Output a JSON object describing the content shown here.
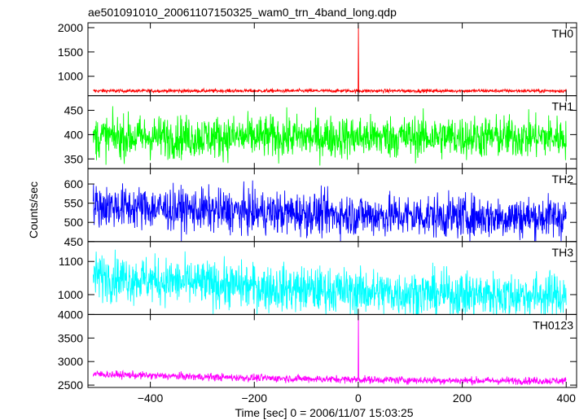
{
  "title": "ae501091010_20061107150325_wam0_trn_4band_long.qdp",
  "chart_data": {
    "type": "line",
    "title": "ae501091010_20061107150325_wam0_trn_4band_long.qdp",
    "xlabel": "Time [sec] 0 = 2006/11/07 15:03:25",
    "ylabel": "Counts/sec",
    "xlim": [
      -520,
      420
    ],
    "x_ticks": [
      -400,
      -200,
      0,
      200,
      400
    ],
    "x_tick_labels": [
      "−400",
      "−200",
      "0",
      "200",
      "400"
    ],
    "x_range": [
      -510,
      400
    ],
    "series": [
      {
        "name": "TH0",
        "color": "#ff0000",
        "ylim": [
          600,
          2100
        ],
        "y_ticks": [
          1000,
          1500,
          2000
        ],
        "y_tick_labels": [
          "1000",
          "1500",
          "2000"
        ],
        "baseline": 700,
        "noise": 18,
        "drift": 0,
        "spike": {
          "x": 0,
          "value": 2050
        }
      },
      {
        "name": "TH1",
        "color": "#00ff00",
        "ylim": [
          330,
          480
        ],
        "y_ticks": [
          350,
          400,
          450
        ],
        "y_tick_labels": [
          "350",
          "400",
          "450"
        ],
        "baseline": 395,
        "noise": 22,
        "drift": 0
      },
      {
        "name": "TH2",
        "color": "#0000ff",
        "ylim": [
          450,
          640
        ],
        "y_ticks": [
          450,
          500,
          550,
          600
        ],
        "y_tick_labels": [
          "450",
          "500",
          "550",
          "600"
        ],
        "baseline": 520,
        "noise": 28,
        "drift": 25
      },
      {
        "name": "TH3",
        "color": "#00ffff",
        "ylim": [
          940,
          1160
        ],
        "y_ticks": [
          1000,
          1100
        ],
        "y_tick_labels": [
          "1000",
          "1100"
        ],
        "baseline": 1010,
        "noise": 35,
        "drift": 50
      },
      {
        "name": "TH0123",
        "color": "#ff00ff",
        "ylim": [
          2450,
          4000
        ],
        "y_ticks": [
          2500,
          3000,
          3500,
          4000
        ],
        "y_tick_labels": [
          "2500",
          "3000",
          "3500",
          "4000"
        ],
        "baseline": 2620,
        "noise": 40,
        "drift": 120,
        "spike": {
          "x": 0,
          "value": 4000
        }
      }
    ],
    "grid": false,
    "legend": "none"
  }
}
